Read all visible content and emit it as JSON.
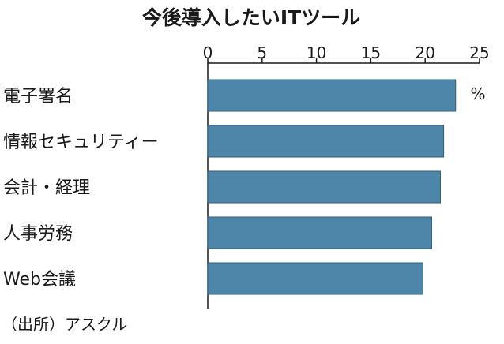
{
  "chart_data": {
    "type": "bar",
    "orientation": "horizontal",
    "title": "今後導入したいITツール",
    "categories": [
      "電子署名",
      "情報セキュリティー",
      "会計・経理",
      "人事労務",
      "Web会議"
    ],
    "values": [
      22.8,
      21.7,
      21.4,
      20.6,
      19.8
    ],
    "xlim": [
      0,
      25
    ],
    "ticks": [
      0,
      5,
      10,
      15,
      20,
      25
    ],
    "unit": "%",
    "bar_color": "#4d86a8",
    "source": "（出所）アスクル",
    "grid": false
  }
}
